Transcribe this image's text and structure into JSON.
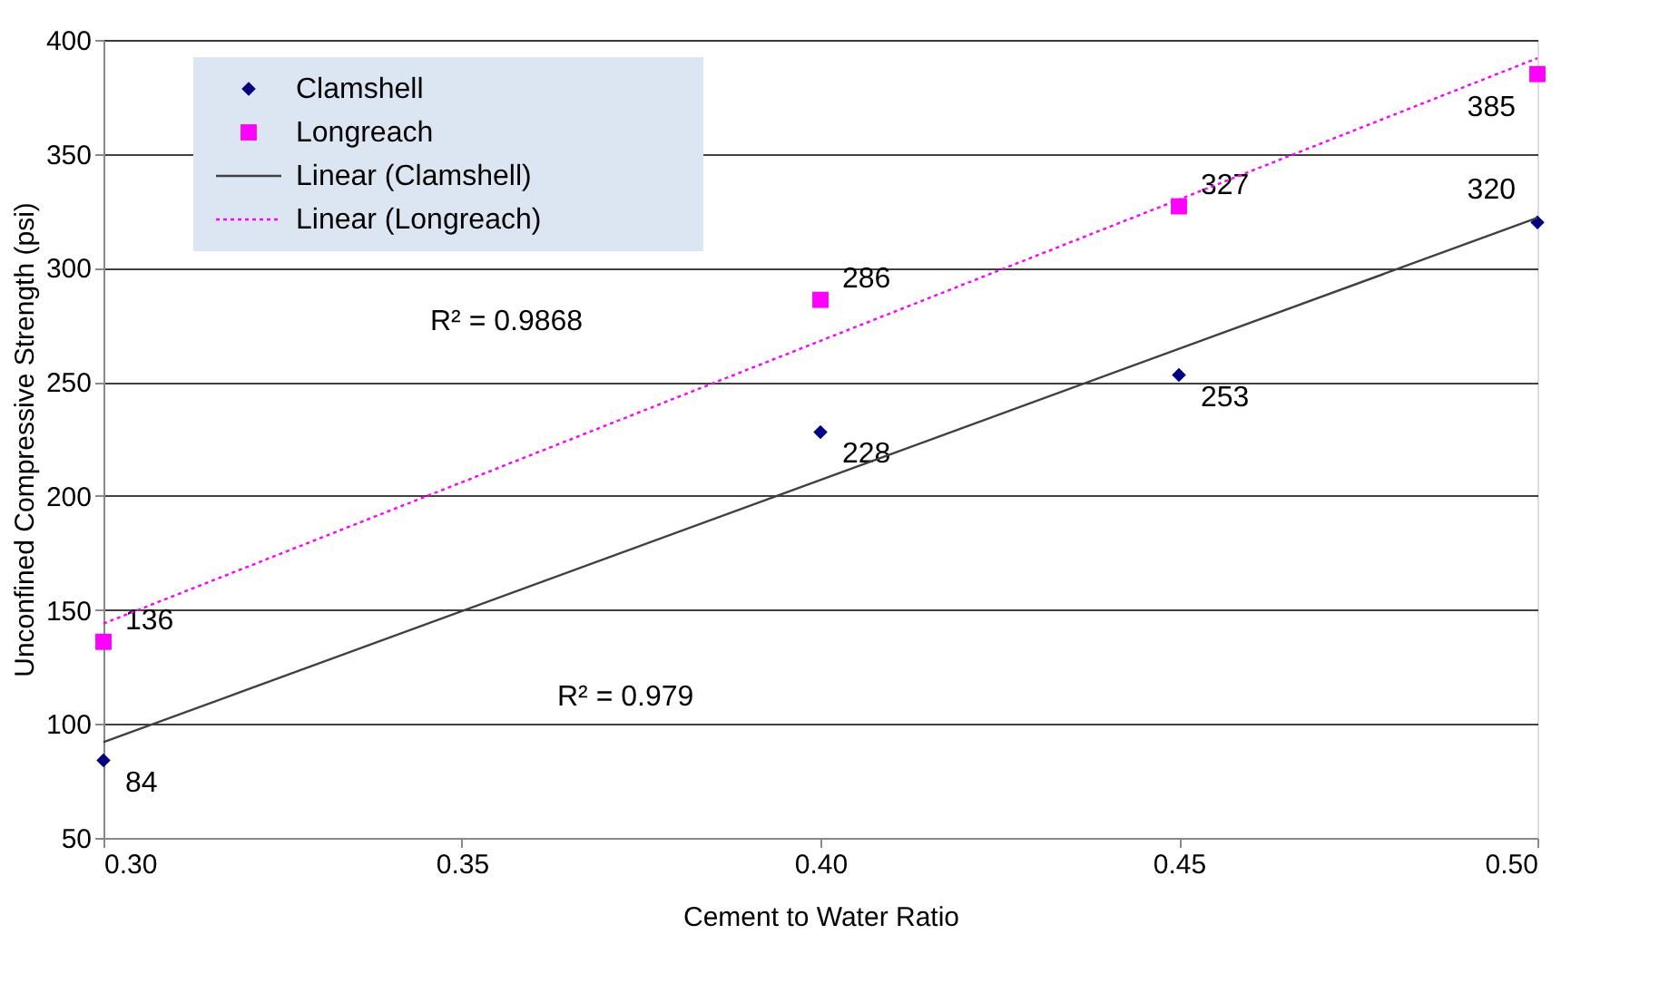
{
  "chart_data": {
    "type": "scatter",
    "xlabel": "Cement to Water Ratio",
    "ylabel": "Unconfined Compressive Strength (psi)",
    "xlim": [
      0.3,
      0.5
    ],
    "xticks": [
      {
        "value": 0.3,
        "label": "0.30"
      },
      0.35,
      {
        "value": 0.4,
        "label": "0.40"
      },
      0.45,
      {
        "value": 0.5,
        "label": "0.50"
      }
    ],
    "ylim": [
      50,
      400
    ],
    "yticks": [
      50,
      100,
      150,
      200,
      250,
      300,
      350,
      400
    ],
    "grid": "y",
    "legend": "top left",
    "series": [
      {
        "type": "scatter",
        "name": "Clamshell",
        "color": "#000080",
        "marker": "diamond",
        "x": [
          0.3,
          0.4,
          0.45,
          0.5
        ],
        "values": [
          84,
          228,
          253,
          320
        ],
        "value_labels": [
          "84",
          "228",
          "253",
          "320"
        ]
      },
      {
        "type": "scatter",
        "name": "Longreach",
        "color": "#ff00ff",
        "marker": "square",
        "x": [
          0.3,
          0.4,
          0.45,
          0.5
        ],
        "values": [
          136,
          286,
          327,
          385
        ],
        "value_labels": [
          "136",
          "286",
          "327",
          "385"
        ]
      },
      {
        "type": "line",
        "name": "Linear (Clamshell)",
        "color": "#404040",
        "line_style": "solid",
        "x": [
          0.3,
          0.5
        ],
        "values": [
          92,
          322
        ]
      },
      {
        "type": "line",
        "name": "Linear (Longreach)",
        "color": "#ff00ff",
        "line_style": "dotted",
        "x": [
          0.3,
          0.5
        ],
        "values": [
          144,
          392
        ]
      }
    ],
    "annotations": [
      "R² = 0.9868",
      "R² = 0.979"
    ]
  }
}
